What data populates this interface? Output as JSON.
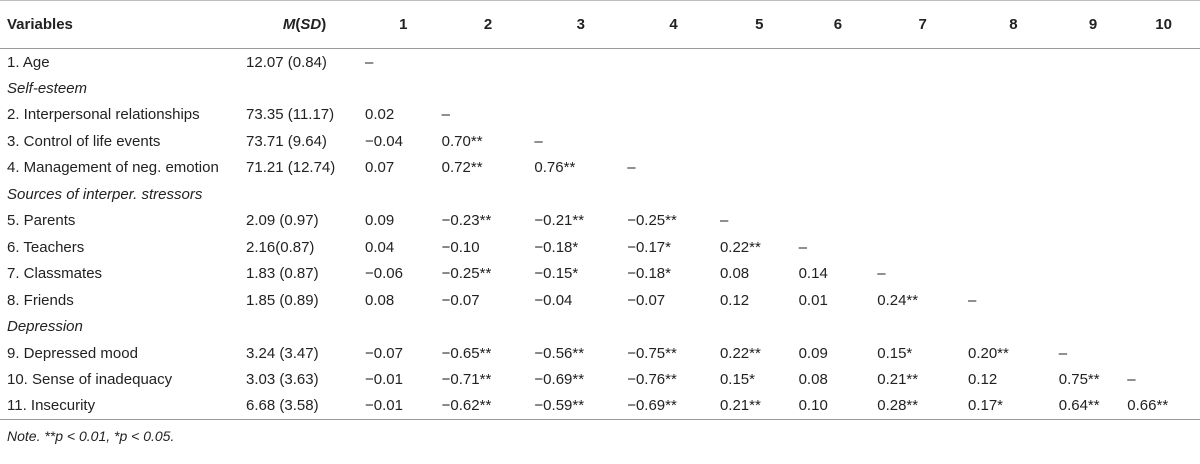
{
  "header": {
    "variables": "Variables",
    "msd_m": "M",
    "msd_sd": "SD",
    "cols": [
      "1",
      "2",
      "3",
      "4",
      "5",
      "6",
      "7",
      "8",
      "9",
      "10"
    ]
  },
  "rows": [
    {
      "type": "data",
      "label": "1. Age",
      "msd": "12.07 (0.84)",
      "cells": [
        "–",
        "",
        "",
        "",
        "",
        "",
        "",
        "",
        "",
        ""
      ]
    },
    {
      "type": "section",
      "label": "Self-esteem"
    },
    {
      "type": "data",
      "label": "2. Interpersonal relationships",
      "msd": "73.35 (11.17)",
      "cells": [
        "0.02",
        "–",
        "",
        "",
        "",
        "",
        "",
        "",
        "",
        ""
      ]
    },
    {
      "type": "data",
      "label": "3. Control of life events",
      "msd": "73.71 (9.64)",
      "cells": [
        "−0.04",
        "0.70**",
        "–",
        "",
        "",
        "",
        "",
        "",
        "",
        ""
      ]
    },
    {
      "type": "data",
      "label": "4. Management of neg. emotion",
      "msd": "71.21 (12.74)",
      "cells": [
        "0.07",
        "0.72**",
        "0.76**",
        "–",
        "",
        "",
        "",
        "",
        "",
        ""
      ]
    },
    {
      "type": "section",
      "label": "Sources of interper. stressors"
    },
    {
      "type": "data",
      "label": "5. Parents",
      "msd": "2.09 (0.97)",
      "cells": [
        "0.09",
        "−0.23**",
        "−0.21**",
        "−0.25**",
        "–",
        "",
        "",
        "",
        "",
        ""
      ]
    },
    {
      "type": "data",
      "label": "6. Teachers",
      "msd": "2.16(0.87)",
      "cells": [
        "0.04",
        "−0.10",
        "−0.18*",
        "−0.17*",
        "0.22**",
        "–",
        "",
        "",
        "",
        ""
      ]
    },
    {
      "type": "data",
      "label": "7. Classmates",
      "msd": "1.83 (0.87)",
      "cells": [
        "−0.06",
        "−0.25**",
        "−0.15*",
        "−0.18*",
        "0.08",
        "0.14",
        "–",
        "",
        "",
        ""
      ]
    },
    {
      "type": "data",
      "label": "8. Friends",
      "msd": "1.85 (0.89)",
      "cells": [
        "0.08",
        "−0.07",
        "−0.04",
        "−0.07",
        "0.12",
        "0.01",
        "0.24**",
        "–",
        "",
        ""
      ]
    },
    {
      "type": "section",
      "label": "Depression"
    },
    {
      "type": "data",
      "label": "9. Depressed mood",
      "msd": "3.24 (3.47)",
      "cells": [
        "−0.07",
        "−0.65**",
        "−0.56**",
        "−0.75**",
        "0.22**",
        "0.09",
        "0.15*",
        "0.20**",
        "–",
        ""
      ]
    },
    {
      "type": "data",
      "label": "10. Sense of inadequacy",
      "msd": "3.03 (3.63)",
      "cells": [
        "−0.01",
        "−0.71**",
        "−0.69**",
        "−0.76**",
        "0.15*",
        "0.08",
        "0.21**",
        "0.12",
        "0.75**",
        "–"
      ]
    },
    {
      "type": "data",
      "label": "11. Insecurity",
      "msd": "6.68 (3.58)",
      "cells": [
        "−0.01",
        "−0.62**",
        "−0.59**",
        "−0.69**",
        "0.21**",
        "0.10",
        "0.28**",
        "0.17*",
        "0.64**",
        "0.66**"
      ]
    }
  ],
  "note": "Note. **p < 0.01, *p < 0.05."
}
